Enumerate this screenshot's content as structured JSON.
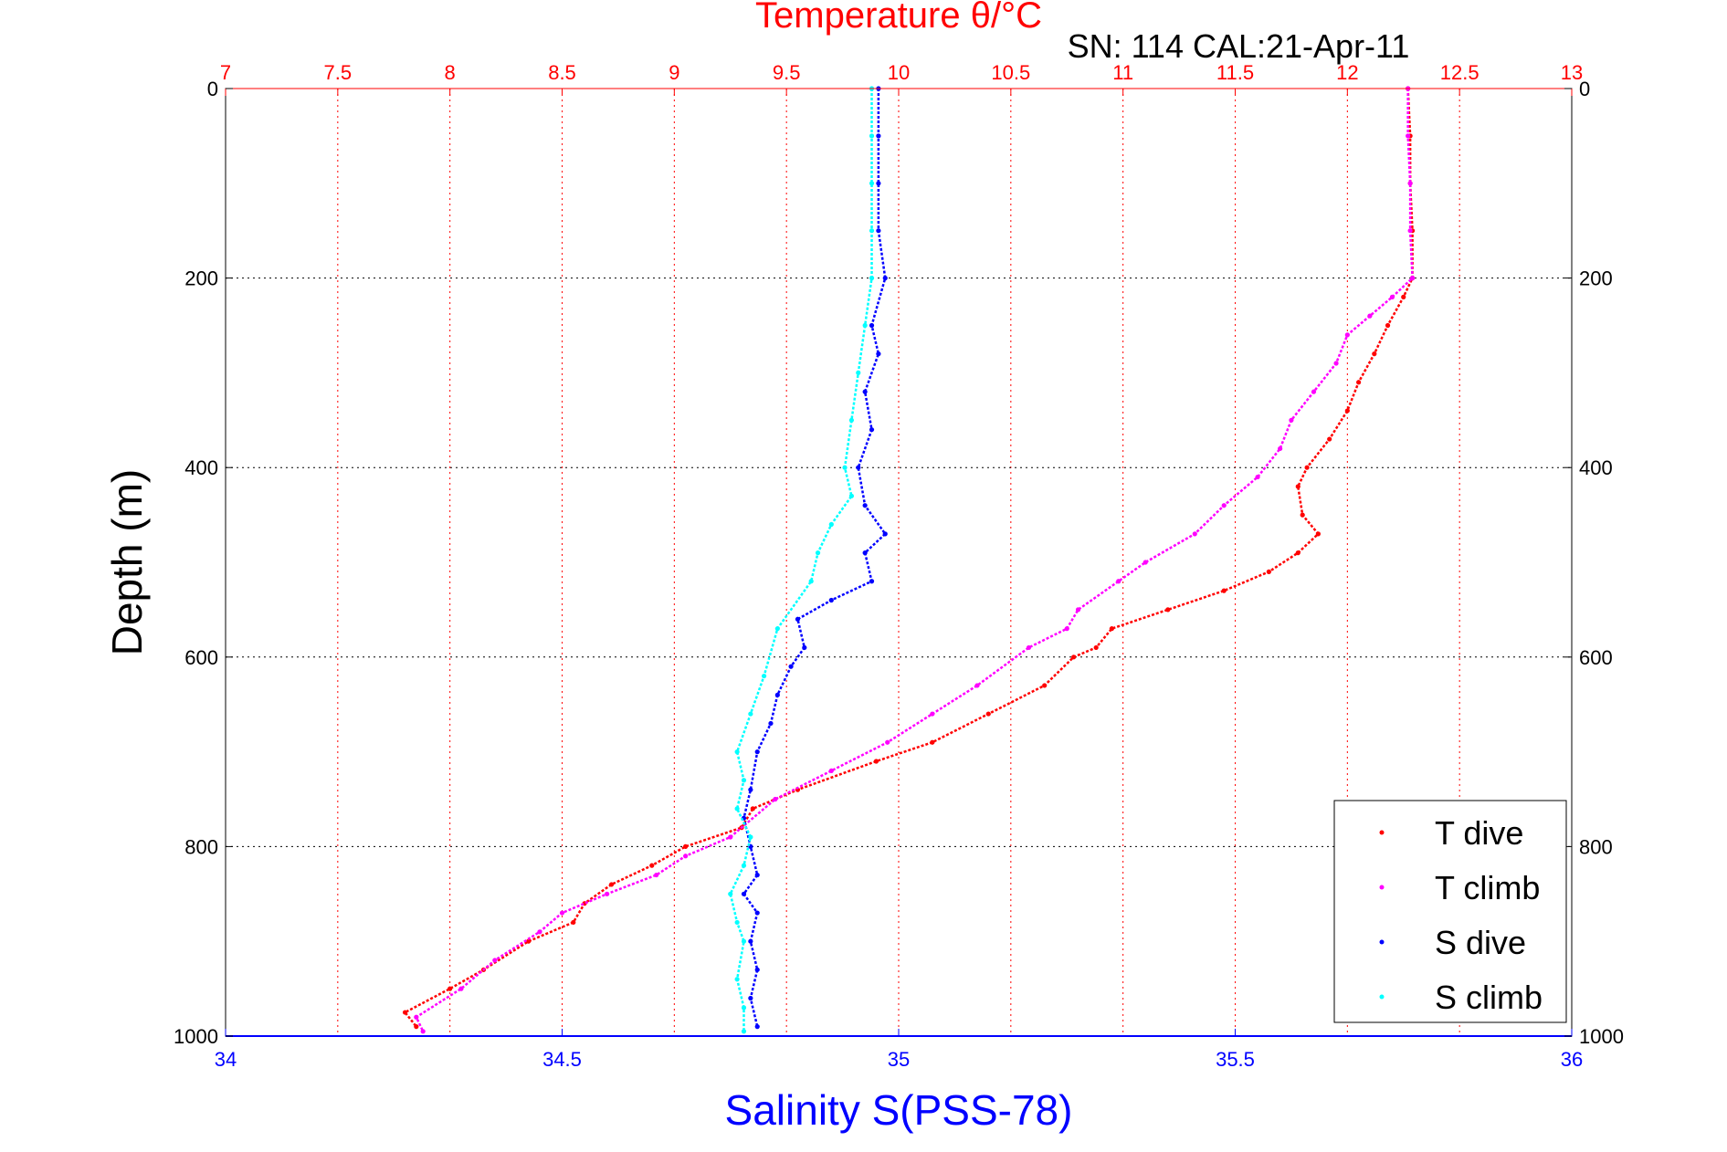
{
  "chart_data": {
    "type": "scatter",
    "title": "Temperature θ/°C",
    "subtitle": "SN: 114  CAL:21-Apr-11",
    "ylabel": "Depth (m)",
    "xlabel_bottom": "Salinity S(PSS-78)",
    "xlabel_top": "Temperature θ/°C",
    "grid": true,
    "legend_position": "bottom-right",
    "y_axis": {
      "min": 0,
      "max": 1000,
      "reversed": true,
      "ticks": [
        0,
        200,
        400,
        600,
        800,
        1000
      ],
      "tick_labels": [
        "0",
        "200",
        "400",
        "600",
        "800",
        "1000"
      ]
    },
    "x_bottom": {
      "min": 34,
      "max": 36,
      "ticks": [
        34,
        34.5,
        35,
        35.5,
        36
      ],
      "tick_labels": [
        "34",
        "34.5",
        "35",
        "35.5",
        "36"
      ]
    },
    "x_top": {
      "min": 7,
      "max": 13,
      "ticks": [
        7,
        7.5,
        8,
        8.5,
        9,
        9.5,
        10,
        10.5,
        11,
        11.5,
        12,
        12.5,
        13
      ],
      "tick_labels": [
        "7",
        "7.5",
        "8",
        "8.5",
        "9",
        "9.5",
        "10",
        "10.5",
        "11",
        "11.5",
        "12",
        "12.5",
        "13"
      ]
    },
    "colors": {
      "top_axis": "#ff0000",
      "bottom_axis": "#0000ff",
      "grid": "#000000"
    },
    "series": [
      {
        "name": "T dive",
        "axis": "top",
        "color": "#ff0000",
        "points": [
          [
            12.27,
            0
          ],
          [
            12.28,
            50
          ],
          [
            12.28,
            100
          ],
          [
            12.29,
            150
          ],
          [
            12.29,
            200
          ],
          [
            12.25,
            220
          ],
          [
            12.18,
            250
          ],
          [
            12.12,
            280
          ],
          [
            12.05,
            310
          ],
          [
            12.0,
            340
          ],
          [
            11.92,
            370
          ],
          [
            11.82,
            400
          ],
          [
            11.78,
            420
          ],
          [
            11.8,
            450
          ],
          [
            11.87,
            470
          ],
          [
            11.78,
            490
          ],
          [
            11.65,
            510
          ],
          [
            11.45,
            530
          ],
          [
            11.2,
            550
          ],
          [
            10.95,
            570
          ],
          [
            10.88,
            590
          ],
          [
            10.78,
            600
          ],
          [
            10.65,
            630
          ],
          [
            10.4,
            660
          ],
          [
            10.15,
            690
          ],
          [
            9.9,
            710
          ],
          [
            9.55,
            740
          ],
          [
            9.35,
            760
          ],
          [
            9.3,
            780
          ],
          [
            9.05,
            800
          ],
          [
            8.9,
            820
          ],
          [
            8.72,
            840
          ],
          [
            8.6,
            860
          ],
          [
            8.55,
            880
          ],
          [
            8.35,
            900
          ],
          [
            8.15,
            930
          ],
          [
            8.0,
            950
          ],
          [
            7.8,
            975
          ],
          [
            7.85,
            990
          ]
        ]
      },
      {
        "name": "T climb",
        "axis": "top",
        "color": "#ff00ff",
        "points": [
          [
            12.27,
            0
          ],
          [
            12.27,
            50
          ],
          [
            12.28,
            100
          ],
          [
            12.28,
            150
          ],
          [
            12.29,
            200
          ],
          [
            12.2,
            220
          ],
          [
            12.1,
            240
          ],
          [
            12.0,
            260
          ],
          [
            11.95,
            290
          ],
          [
            11.85,
            320
          ],
          [
            11.75,
            350
          ],
          [
            11.7,
            380
          ],
          [
            11.6,
            410
          ],
          [
            11.45,
            440
          ],
          [
            11.32,
            470
          ],
          [
            11.1,
            500
          ],
          [
            10.98,
            520
          ],
          [
            10.8,
            550
          ],
          [
            10.75,
            570
          ],
          [
            10.58,
            590
          ],
          [
            10.35,
            630
          ],
          [
            10.15,
            660
          ],
          [
            9.95,
            690
          ],
          [
            9.7,
            720
          ],
          [
            9.45,
            750
          ],
          [
            9.25,
            790
          ],
          [
            9.05,
            810
          ],
          [
            8.92,
            830
          ],
          [
            8.7,
            850
          ],
          [
            8.5,
            870
          ],
          [
            8.4,
            890
          ],
          [
            8.2,
            920
          ],
          [
            8.05,
            950
          ],
          [
            7.85,
            980
          ],
          [
            7.88,
            995
          ]
        ]
      },
      {
        "name": "S dive",
        "axis": "bottom",
        "color": "#0000ff",
        "points": [
          [
            34.97,
            0
          ],
          [
            34.97,
            50
          ],
          [
            34.97,
            100
          ],
          [
            34.97,
            150
          ],
          [
            34.98,
            200
          ],
          [
            34.96,
            250
          ],
          [
            34.97,
            280
          ],
          [
            34.95,
            320
          ],
          [
            34.96,
            360
          ],
          [
            34.94,
            400
          ],
          [
            34.95,
            440
          ],
          [
            34.98,
            470
          ],
          [
            34.95,
            490
          ],
          [
            34.96,
            520
          ],
          [
            34.9,
            540
          ],
          [
            34.85,
            560
          ],
          [
            34.86,
            590
          ],
          [
            34.84,
            610
          ],
          [
            34.82,
            640
          ],
          [
            34.81,
            670
          ],
          [
            34.79,
            700
          ],
          [
            34.78,
            740
          ],
          [
            34.77,
            770
          ],
          [
            34.78,
            800
          ],
          [
            34.79,
            830
          ],
          [
            34.77,
            850
          ],
          [
            34.79,
            870
          ],
          [
            34.78,
            900
          ],
          [
            34.79,
            930
          ],
          [
            34.78,
            960
          ],
          [
            34.79,
            990
          ]
        ]
      },
      {
        "name": "S climb",
        "axis": "bottom",
        "color": "#00ffff",
        "points": [
          [
            34.96,
            0
          ],
          [
            34.96,
            50
          ],
          [
            34.96,
            100
          ],
          [
            34.96,
            150
          ],
          [
            34.96,
            200
          ],
          [
            34.95,
            250
          ],
          [
            34.94,
            300
          ],
          [
            34.93,
            350
          ],
          [
            34.92,
            400
          ],
          [
            34.93,
            430
          ],
          [
            34.9,
            460
          ],
          [
            34.88,
            490
          ],
          [
            34.87,
            520
          ],
          [
            34.82,
            570
          ],
          [
            34.8,
            620
          ],
          [
            34.78,
            660
          ],
          [
            34.76,
            700
          ],
          [
            34.77,
            730
          ],
          [
            34.76,
            760
          ],
          [
            34.78,
            790
          ],
          [
            34.77,
            820
          ],
          [
            34.75,
            850
          ],
          [
            34.76,
            880
          ],
          [
            34.77,
            900
          ],
          [
            34.76,
            940
          ],
          [
            34.77,
            970
          ],
          [
            34.77,
            995
          ]
        ]
      }
    ]
  }
}
